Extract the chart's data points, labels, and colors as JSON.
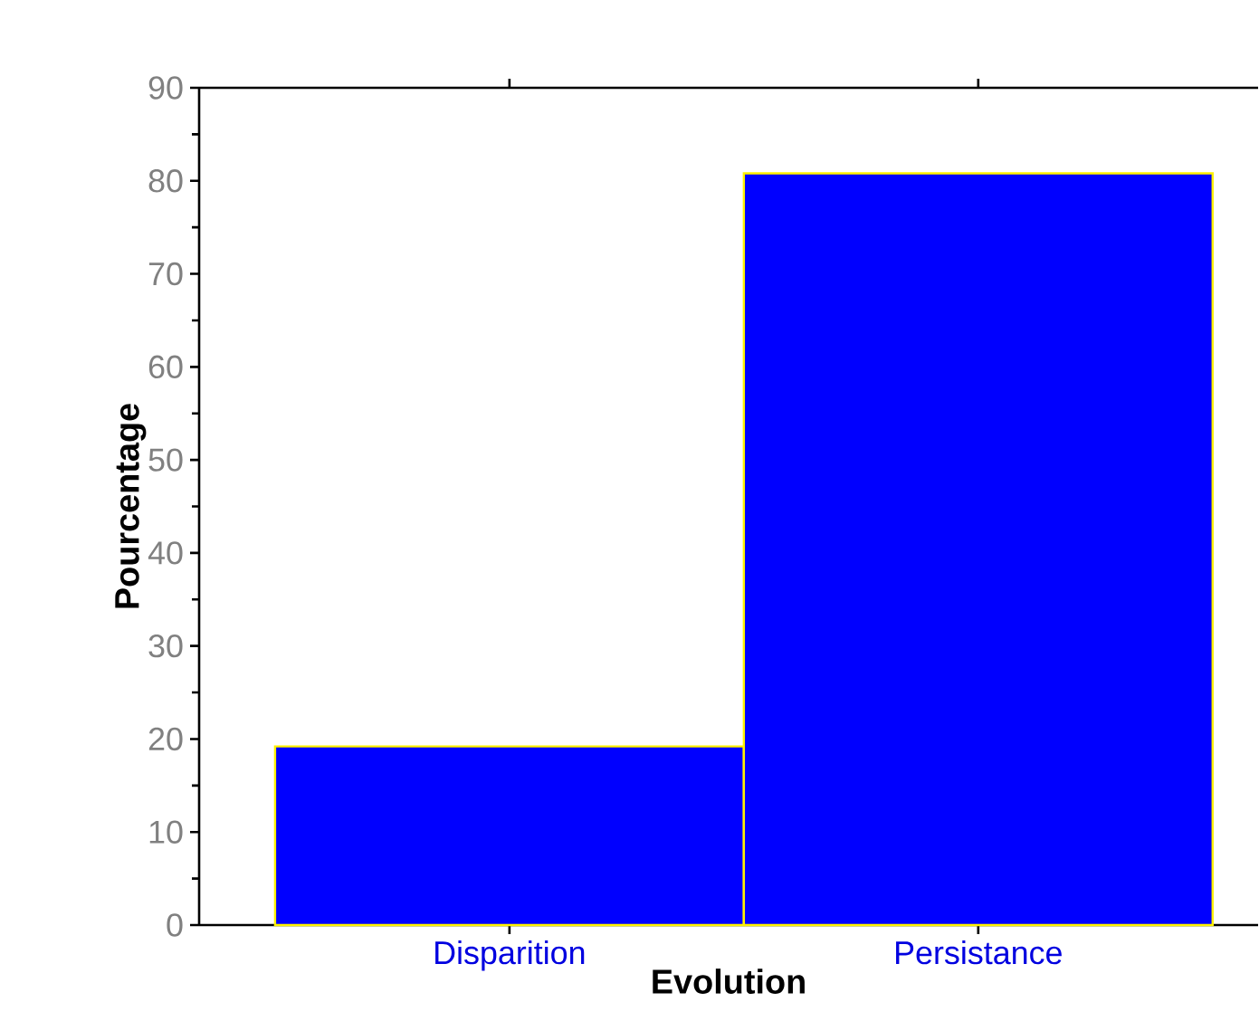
{
  "chart_data": {
    "type": "bar",
    "xlabel": "Evolution",
    "ylabel": "Pourcentage",
    "categories": [
      "Disparition",
      "Persistance"
    ],
    "values": [
      19.2,
      80.8
    ],
    "color": "#0000ff",
    "ylim": [
      0,
      90
    ],
    "yticks": [
      0,
      10,
      20,
      30,
      40,
      50,
      60,
      70,
      80,
      90
    ]
  }
}
